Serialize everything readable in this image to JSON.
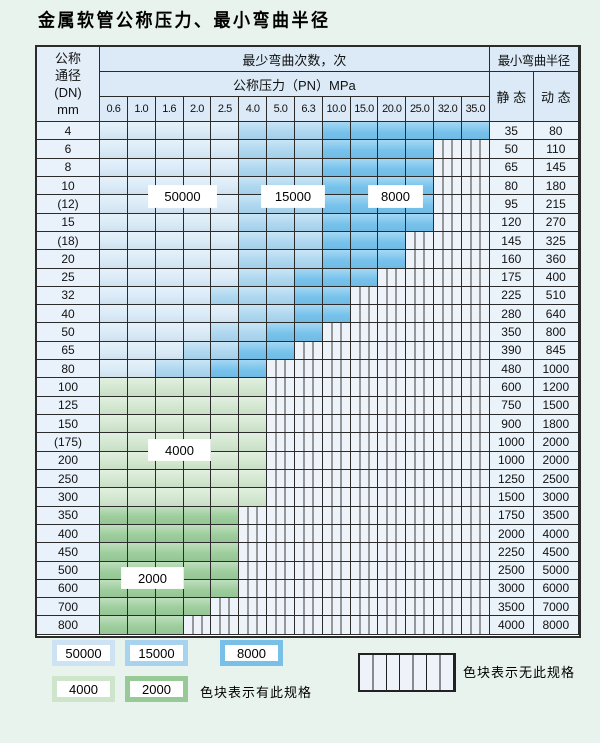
{
  "page": {
    "title": "金属软管公称压力、最小弯曲半径"
  },
  "table": {
    "header": {
      "dn_lines": [
        "公称",
        "通径",
        "(DN)",
        "mm"
      ],
      "bend_count": "最少弯曲次数，次",
      "radius": "最小弯曲半径",
      "pressure": "公称压力（PN）MPa",
      "static": "静 态",
      "dynamic": "动 态",
      "pressure_ticks": [
        "0.6",
        "1.0",
        "1.6",
        "2.0",
        "2.5",
        "4.0",
        "5.0",
        "6.3",
        "10.0",
        "15.0",
        "20.0",
        "25.0",
        "32.0",
        "35.0"
      ]
    },
    "rows": [
      {
        "dn": "4",
        "pattern": "AAAAABBBCCCCCC",
        "static": "35",
        "dynamic": "80"
      },
      {
        "dn": "6",
        "pattern": "AAAAABBBCCCCHH",
        "static": "50",
        "dynamic": "110"
      },
      {
        "dn": "8",
        "pattern": "AAAAABBBCCCCHH",
        "static": "65",
        "dynamic": "145"
      },
      {
        "dn": "10",
        "pattern": "AAAAABBBCCCCHH",
        "static": "80",
        "dynamic": "180"
      },
      {
        "dn": "(12)",
        "pattern": "AAAAABBBCCCCHH",
        "static": "95",
        "dynamic": "215"
      },
      {
        "dn": "15",
        "pattern": "AAAAABBBCCCCHH",
        "static": "120",
        "dynamic": "270"
      },
      {
        "dn": "(18)",
        "pattern": "AAAAABBBCCCHHH",
        "static": "145",
        "dynamic": "325"
      },
      {
        "dn": "20",
        "pattern": "AAAAABBBCCCHHH",
        "static": "160",
        "dynamic": "360"
      },
      {
        "dn": "25",
        "pattern": "AAAAABBCCCHHHH",
        "static": "175",
        "dynamic": "400"
      },
      {
        "dn": "32",
        "pattern": "AAAABBBCCHHHHH",
        "static": "225",
        "dynamic": "510"
      },
      {
        "dn": "40",
        "pattern": "AAAAABBCCHHHHH",
        "static": "280",
        "dynamic": "640"
      },
      {
        "dn": "50",
        "pattern": "AAAABBCCHHHHHH",
        "static": "350",
        "dynamic": "800"
      },
      {
        "dn": "65",
        "pattern": "AAABBCCHHHHHHH",
        "static": "390",
        "dynamic": "845"
      },
      {
        "dn": "80",
        "pattern": "AABBCCHHHHHHHH",
        "static": "480",
        "dynamic": "1000"
      },
      {
        "dn": "100",
        "pattern": "DDDDDDHHHHHHHH",
        "static": "600",
        "dynamic": "1200"
      },
      {
        "dn": "125",
        "pattern": "DDDDDDHHHHHHHH",
        "static": "750",
        "dynamic": "1500"
      },
      {
        "dn": "150",
        "pattern": "DDDDDDHHHHHHHH",
        "static": "900",
        "dynamic": "1800"
      },
      {
        "dn": "(175)",
        "pattern": "DDDDDDHHHHHHHH",
        "static": "1000",
        "dynamic": "2000"
      },
      {
        "dn": "200",
        "pattern": "DDDDDDHHHHHHHH",
        "static": "1000",
        "dynamic": "2000"
      },
      {
        "dn": "250",
        "pattern": "DDDDDDHHHHHHHH",
        "static": "1250",
        "dynamic": "2500"
      },
      {
        "dn": "300",
        "pattern": "DDDDDDHHHHHHHH",
        "static": "1500",
        "dynamic": "3000"
      },
      {
        "dn": "350",
        "pattern": "EEEEEHHHHHHHHH",
        "static": "1750",
        "dynamic": "3500"
      },
      {
        "dn": "400",
        "pattern": "EEEEEHHHHHHHHH",
        "static": "2000",
        "dynamic": "4000"
      },
      {
        "dn": "450",
        "pattern": "EEEEEHHHHHHHHH",
        "static": "2250",
        "dynamic": "4500"
      },
      {
        "dn": "500",
        "pattern": "EEEEEHHHHHHHHH",
        "static": "2500",
        "dynamic": "5000"
      },
      {
        "dn": "600",
        "pattern": "EEEEEHHHHHHHHH",
        "static": "3000",
        "dynamic": "6000"
      },
      {
        "dn": "700",
        "pattern": "EEEEHHHHHHHHHH",
        "static": "3500",
        "dynamic": "7000"
      },
      {
        "dn": "800",
        "pattern": "EEEHHHHHHHHHHH",
        "static": "4000",
        "dynamic": "8000"
      }
    ]
  },
  "overlays": {
    "v50000": "50000",
    "v15000": "15000",
    "v8000": "8000",
    "v4000": "4000",
    "v2000": "2000"
  },
  "legend": {
    "blue_items": [
      {
        "label": "50000",
        "border": "#cde3f4"
      },
      {
        "label": "15000",
        "border": "#a8d3ee"
      },
      {
        "label": "8000",
        "border": "#79c0e9"
      }
    ],
    "green_items": [
      {
        "label": "4000",
        "border": "#cfe5cb"
      },
      {
        "label": "2000",
        "border": "#97ca96"
      }
    ],
    "has_spec_text": "色块表示有此规格",
    "no_spec_text": "色块表示无此规格"
  },
  "colors": {
    "cycles_50000": "#d9eaf7",
    "cycles_15000": "#add7f0",
    "cycles_8000": "#76c2ec",
    "cycles_4000": "#d2e7cf",
    "cycles_2000": "#9ccd9b",
    "hatch_bg": "#edf3f8",
    "border": "#2b2b2b"
  }
}
